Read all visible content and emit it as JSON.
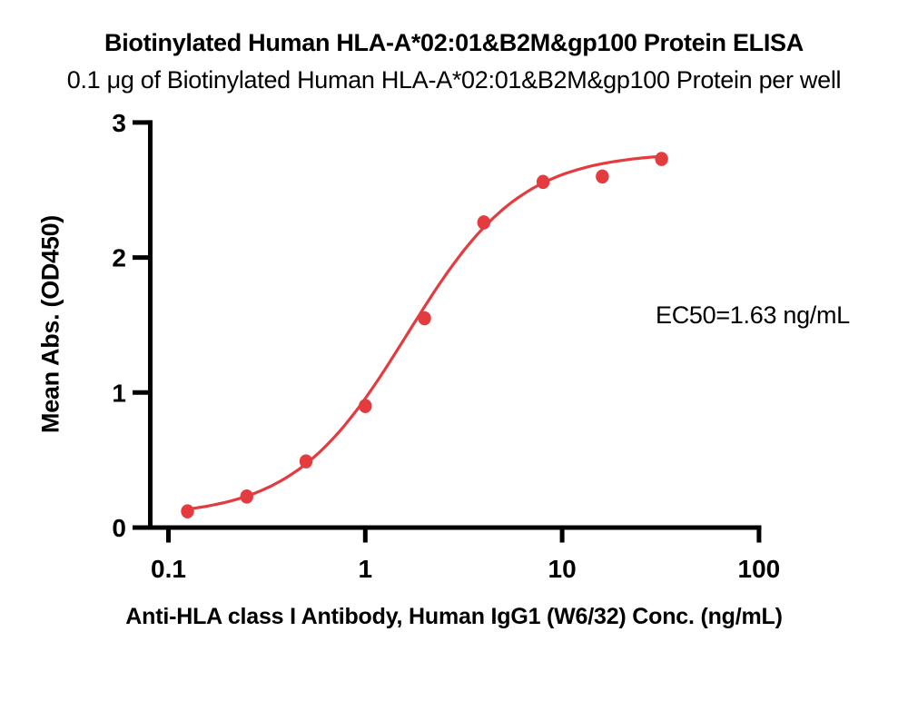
{
  "chart_data": {
    "type": "scatter",
    "title": "Biotinylated Human HLA-A*02:01&B2M&gp100 Protein ELISA",
    "subtitle": "0.1 μg of Biotinylated Human HLA-A*02:01&B2M&gp100 Protein per well",
    "xlabel": "Anti-HLA class I Antibody, Human IgG1 (W6/32) Conc. (ng/mL)",
    "ylabel": "Mean Abs. (OD450)",
    "x_scale": "log10",
    "xlim": [
      0.1,
      100
    ],
    "ylim": [
      0,
      3
    ],
    "x_ticks": [
      0.1,
      1,
      10,
      100
    ],
    "x_tick_labels": [
      "0.1",
      "1",
      "10",
      "100"
    ],
    "y_ticks": [
      0,
      1,
      2,
      3
    ],
    "y_tick_labels": [
      "0",
      "1",
      "2",
      "3"
    ],
    "grid": false,
    "legend": "none",
    "series": [
      {
        "name": "Biotinylated Human HLA-A*02:01&B2M&gp100 Protein",
        "color": "#E43B3E",
        "marker": "circle",
        "x": [
          0.125,
          0.25,
          0.5,
          1,
          2,
          4,
          8,
          16,
          32
        ],
        "y": [
          0.12,
          0.23,
          0.49,
          0.9,
          1.55,
          2.26,
          2.56,
          2.6,
          2.73
        ]
      }
    ],
    "fit_curve": {
      "model": "4PL",
      "bottom": 0.08,
      "top": 2.78,
      "ec50": 1.63,
      "hill": 1.5,
      "x_range": [
        0.122,
        32
      ]
    },
    "annotations": [
      {
        "text": "EC50=1.63 ng/mL"
      }
    ]
  },
  "colors": {
    "series_red": "#E43B3E",
    "axis_black": "#000000",
    "background": "#FFFFFF"
  }
}
